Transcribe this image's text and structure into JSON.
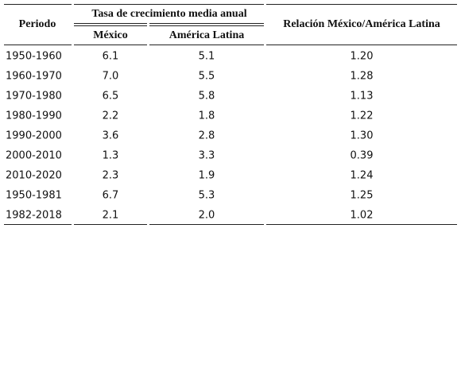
{
  "header": {
    "periodo": "Periodo",
    "tasa": "Tasa de crecimiento media anual",
    "mexico": "México",
    "america_latina": "América Latina",
    "relacion": "Relación México/América Latina"
  },
  "table": {
    "rows": [
      [
        "1950-1960",
        "6.1",
        "5.1",
        "1.20"
      ],
      [
        "1960-1970",
        "7.0",
        "5.5",
        "1.28"
      ],
      [
        "1970-1980",
        "6.5",
        "5.8",
        "1.13"
      ],
      [
        "1980-1990",
        "2.2",
        "1.8",
        "1.22"
      ],
      [
        "1990-2000",
        "3.6",
        "2.8",
        "1.30"
      ],
      [
        "2000-2010",
        "1.3",
        "3.3",
        "0.39"
      ],
      [
        "2010-2020",
        "2.3",
        "1.9",
        "1.24"
      ],
      [
        "1950-1981",
        "6.7",
        "5.3",
        "1.25"
      ],
      [
        "1982-2018",
        "2.1",
        "2.0",
        "1.02"
      ]
    ]
  }
}
